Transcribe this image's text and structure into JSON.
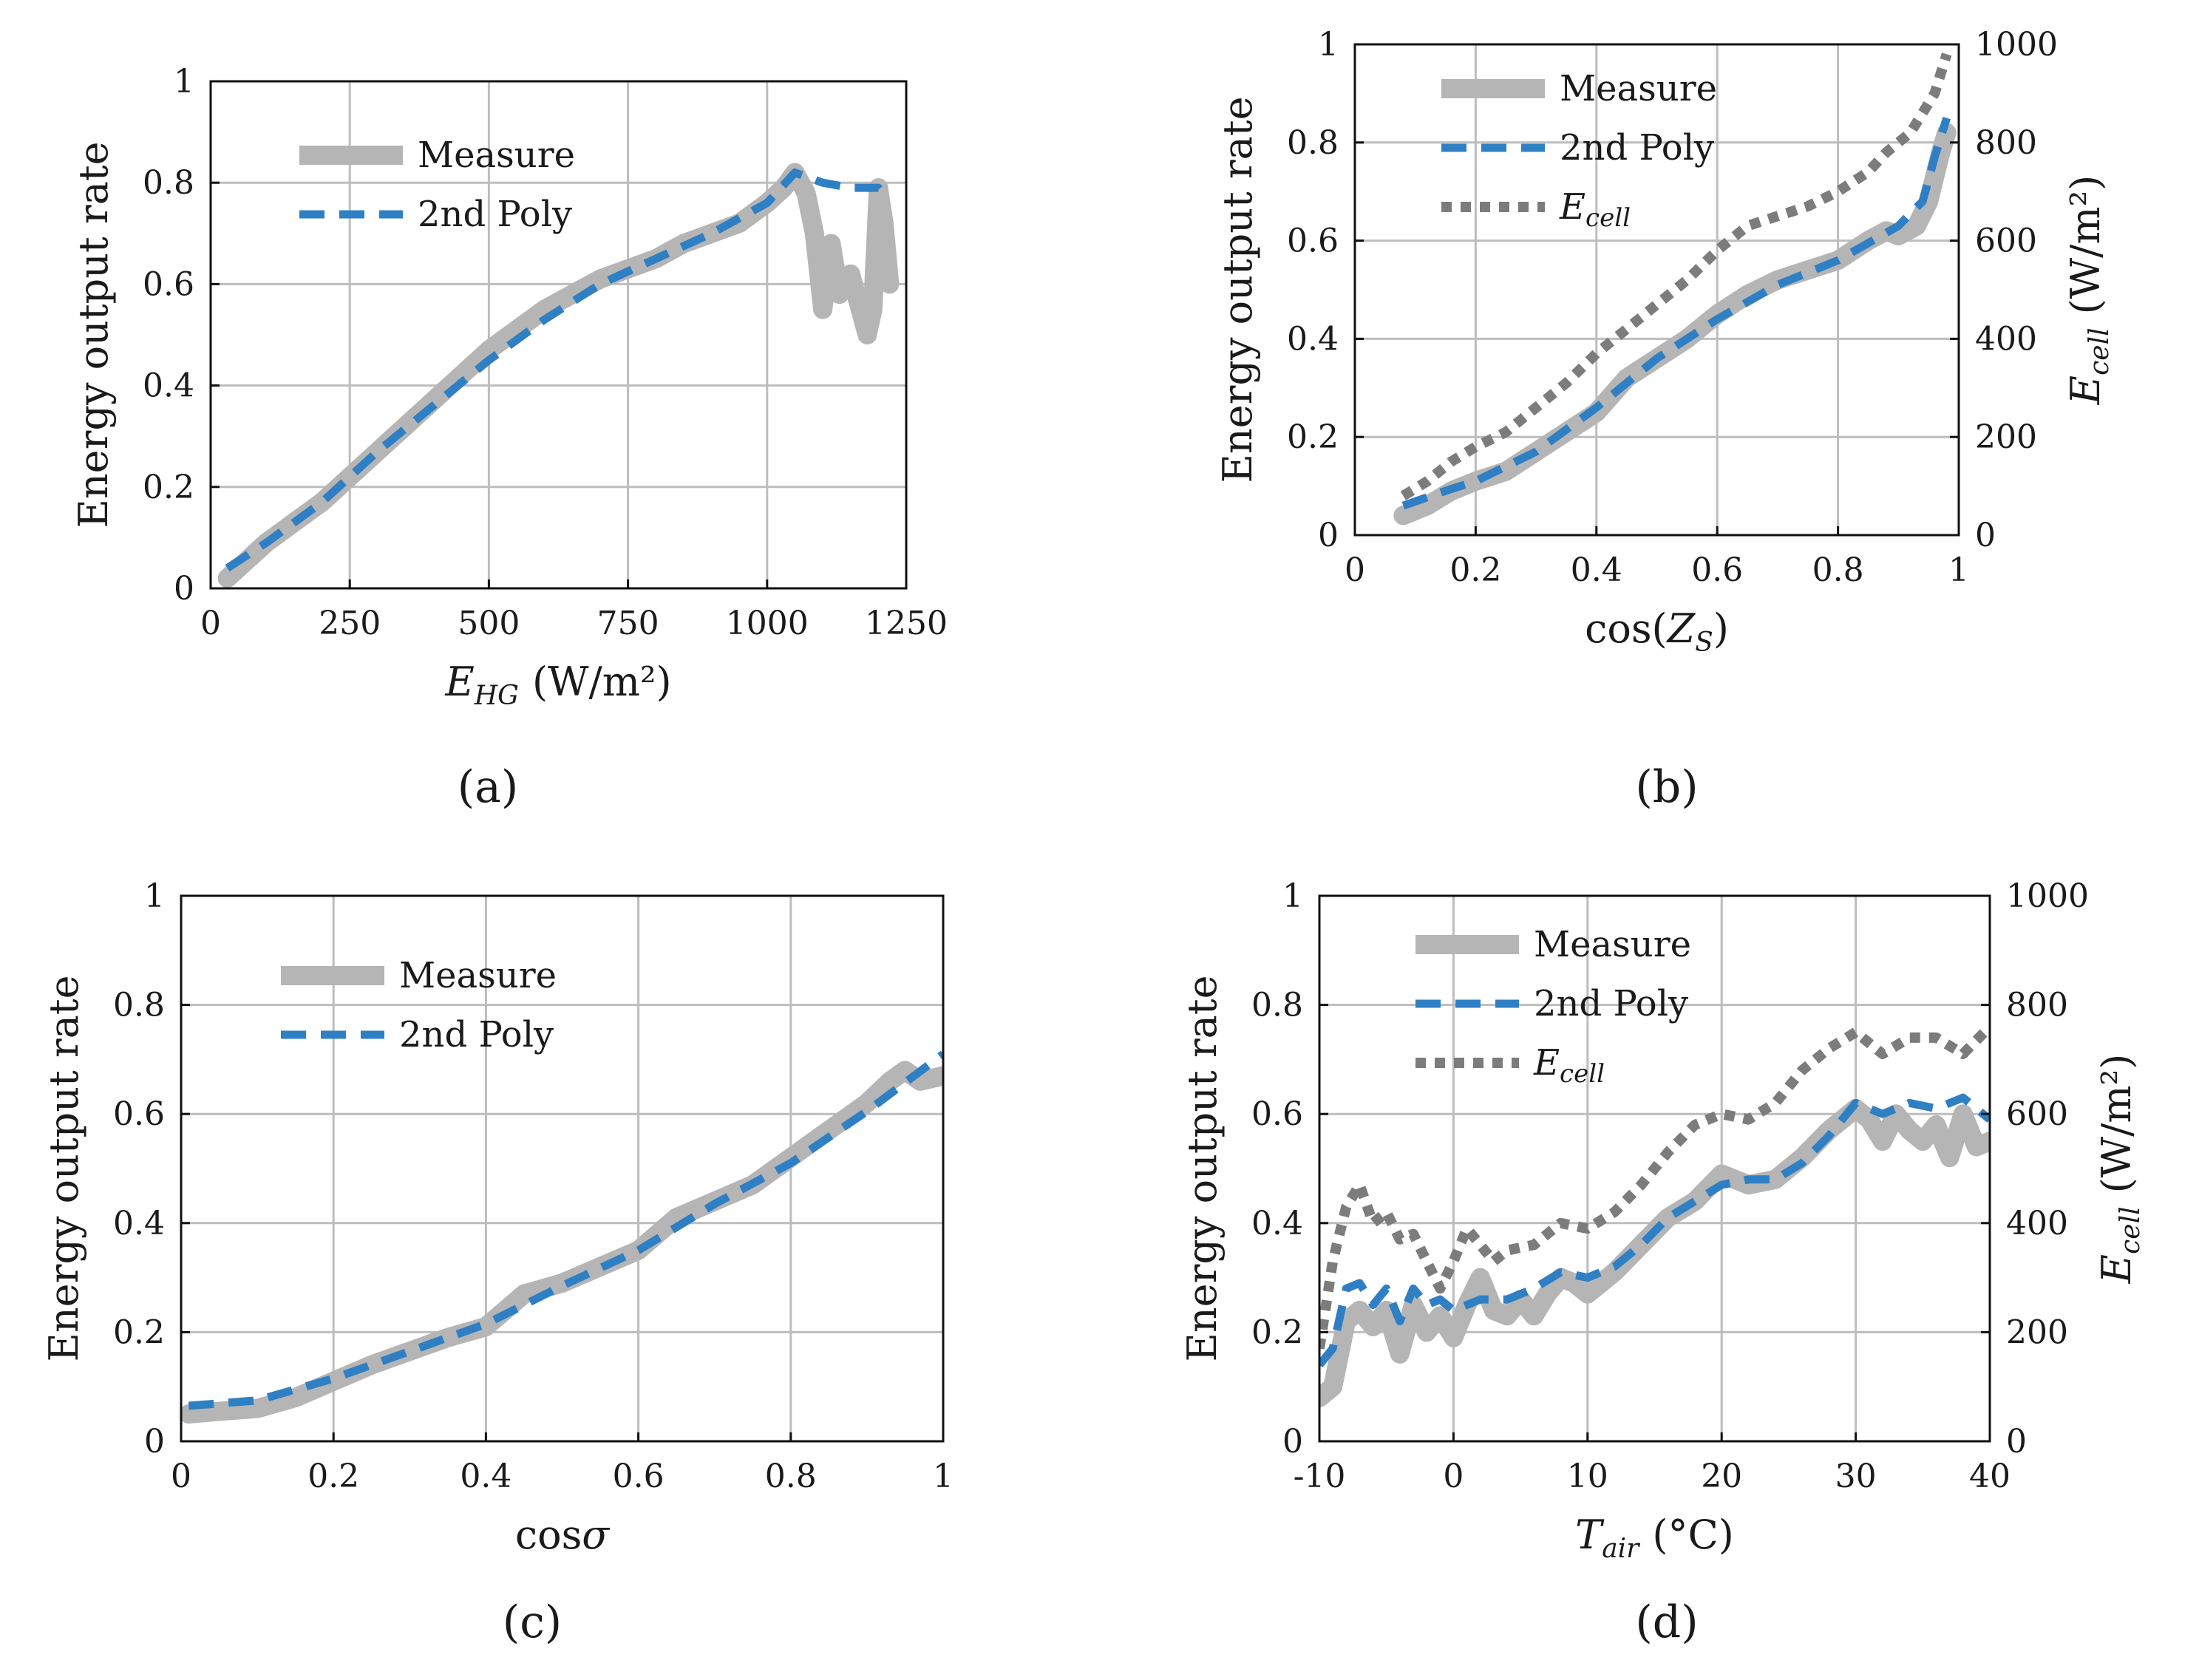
{
  "colors": {
    "measure": "#b5b5b5",
    "poly": "#2f7fc4",
    "ecell": "#7c7c7c",
    "grid": "#bdbdbd"
  },
  "chart_data": [
    {
      "type": "line",
      "caption": "(a)",
      "xlabel": {
        "main": "E",
        "sub": "HG",
        "unit": "(W/m²)"
      },
      "ylabel": "Energy output rate",
      "xlim": [
        0,
        1250
      ],
      "ylim": [
        0,
        1
      ],
      "xticks": [
        "0",
        "250",
        "500",
        "750",
        "1000",
        "1250"
      ],
      "yticks": [
        "0",
        "0.2",
        "0.4",
        "0.6",
        "0.8",
        "1"
      ],
      "legend": [
        "Measure",
        "2nd Poly"
      ],
      "series": [
        {
          "name": "Measure",
          "style": "measure",
          "x": [
            30,
            60,
            100,
            150,
            200,
            250,
            300,
            350,
            400,
            450,
            500,
            550,
            600,
            650,
            700,
            750,
            800,
            850,
            900,
            950,
            1000,
            1030,
            1050,
            1070,
            1085,
            1100,
            1115,
            1130,
            1150,
            1165,
            1180,
            1190,
            1200,
            1210,
            1220
          ],
          "y": [
            0.02,
            0.05,
            0.09,
            0.13,
            0.17,
            0.22,
            0.27,
            0.32,
            0.37,
            0.42,
            0.47,
            0.51,
            0.55,
            0.58,
            0.61,
            0.63,
            0.65,
            0.68,
            0.7,
            0.72,
            0.76,
            0.79,
            0.82,
            0.78,
            0.7,
            0.55,
            0.68,
            0.58,
            0.62,
            0.56,
            0.5,
            0.55,
            0.79,
            0.72,
            0.6
          ]
        },
        {
          "name": "2nd Poly",
          "style": "poly",
          "x": [
            30,
            100,
            200,
            300,
            400,
            500,
            600,
            700,
            800,
            900,
            1000,
            1050,
            1100,
            1150,
            1200,
            1215
          ],
          "y": [
            0.04,
            0.09,
            0.17,
            0.27,
            0.36,
            0.45,
            0.53,
            0.6,
            0.65,
            0.7,
            0.76,
            0.82,
            0.8,
            0.79,
            0.79,
            0.77
          ]
        }
      ]
    },
    {
      "type": "line",
      "caption": "(b)",
      "xlabel": {
        "pre": "cos(",
        "main": "Z",
        "sub": "S",
        "post": ")"
      },
      "ylabel": "Energy output rate",
      "ylabel2": {
        "main": "E",
        "sub": "cell",
        "unit": "(W/m²)"
      },
      "xlim": [
        0,
        1
      ],
      "ylim": [
        0,
        1
      ],
      "y2lim": [
        0,
        1000
      ],
      "xticks": [
        "0",
        "0.2",
        "0.4",
        "0.6",
        "0.8",
        "1"
      ],
      "yticks": [
        "0",
        "0.2",
        "0.4",
        "0.6",
        "0.8",
        "1"
      ],
      "y2ticks": [
        "0",
        "200",
        "400",
        "600",
        "800",
        "1000"
      ],
      "legend": [
        "Measure",
        "2nd Poly",
        "Ecell"
      ],
      "series": [
        {
          "name": "Measure",
          "style": "measure",
          "x": [
            0.08,
            0.12,
            0.16,
            0.2,
            0.25,
            0.3,
            0.35,
            0.4,
            0.45,
            0.5,
            0.55,
            0.6,
            0.65,
            0.7,
            0.75,
            0.8,
            0.85,
            0.88,
            0.9,
            0.93,
            0.95,
            0.97,
            0.98
          ],
          "y": [
            0.04,
            0.06,
            0.09,
            0.11,
            0.13,
            0.17,
            0.21,
            0.25,
            0.32,
            0.36,
            0.4,
            0.45,
            0.49,
            0.52,
            0.54,
            0.56,
            0.6,
            0.62,
            0.61,
            0.63,
            0.68,
            0.78,
            0.82
          ]
        },
        {
          "name": "2nd Poly",
          "style": "poly",
          "x": [
            0.08,
            0.15,
            0.2,
            0.3,
            0.4,
            0.5,
            0.6,
            0.7,
            0.8,
            0.9,
            0.94,
            0.96,
            0.98
          ],
          "y": [
            0.06,
            0.09,
            0.11,
            0.17,
            0.26,
            0.36,
            0.44,
            0.51,
            0.56,
            0.63,
            0.68,
            0.77,
            0.85
          ]
        },
        {
          "name": "Ecell",
          "style": "ecell",
          "axis": "y2",
          "x": [
            0.08,
            0.12,
            0.16,
            0.2,
            0.25,
            0.3,
            0.35,
            0.4,
            0.45,
            0.5,
            0.55,
            0.6,
            0.65,
            0.7,
            0.75,
            0.8,
            0.85,
            0.88,
            0.9,
            0.92,
            0.94,
            0.96,
            0.98
          ],
          "y": [
            80,
            110,
            150,
            180,
            210,
            260,
            310,
            370,
            420,
            470,
            520,
            580,
            630,
            650,
            670,
            700,
            740,
            780,
            800,
            820,
            860,
            900,
            980
          ]
        }
      ]
    },
    {
      "type": "line",
      "caption": "(c)",
      "xlabel": {
        "pre": "cos",
        "main": "σ"
      },
      "ylabel": "Energy output rate",
      "xlim": [
        0,
        1
      ],
      "ylim": [
        0,
        1
      ],
      "xticks": [
        "0",
        "0.2",
        "0.4",
        "0.6",
        "0.8",
        "1"
      ],
      "yticks": [
        "0",
        "0.2",
        "0.4",
        "0.6",
        "0.8",
        "1"
      ],
      "legend": [
        "Measure",
        "2nd Poly"
      ],
      "series": [
        {
          "name": "Measure",
          "style": "measure",
          "x": [
            0.01,
            0.05,
            0.1,
            0.15,
            0.2,
            0.25,
            0.3,
            0.35,
            0.4,
            0.45,
            0.5,
            0.55,
            0.6,
            0.65,
            0.7,
            0.75,
            0.8,
            0.85,
            0.9,
            0.93,
            0.95,
            0.97,
            1.0
          ],
          "y": [
            0.05,
            0.055,
            0.06,
            0.08,
            0.11,
            0.14,
            0.165,
            0.19,
            0.21,
            0.27,
            0.29,
            0.32,
            0.35,
            0.41,
            0.44,
            0.47,
            0.52,
            0.57,
            0.62,
            0.66,
            0.68,
            0.66,
            0.67
          ]
        },
        {
          "name": "2nd Poly",
          "style": "poly",
          "x": [
            0.01,
            0.1,
            0.2,
            0.3,
            0.4,
            0.5,
            0.6,
            0.7,
            0.8,
            0.9,
            1.0
          ],
          "y": [
            0.065,
            0.075,
            0.115,
            0.165,
            0.215,
            0.285,
            0.35,
            0.435,
            0.51,
            0.605,
            0.71
          ]
        }
      ]
    },
    {
      "type": "line",
      "caption": "(d)",
      "xlabel": {
        "main": "T",
        "sub": "air",
        "unit": "(°C)"
      },
      "ylabel": "Energy output rate",
      "ylabel2": {
        "main": "E",
        "sub": "cell",
        "unit": "(W/m²)"
      },
      "xlim": [
        -10,
        40
      ],
      "ylim": [
        0,
        1
      ],
      "y2lim": [
        0,
        1000
      ],
      "xticks": [
        "-10",
        "0",
        "10",
        "20",
        "30",
        "40"
      ],
      "yticks": [
        "0",
        "0.2",
        "0.4",
        "0.6",
        "0.8",
        "1"
      ],
      "y2ticks": [
        "0",
        "200",
        "400",
        "600",
        "800",
        "1000"
      ],
      "legend": [
        "Measure",
        "2nd Poly",
        "Ecell"
      ],
      "series": [
        {
          "name": "Measure",
          "style": "measure",
          "x": [
            -10,
            -9,
            -8,
            -7,
            -6,
            -5,
            -4,
            -3,
            -2,
            -1,
            0,
            1,
            2,
            3,
            4,
            5,
            6,
            7,
            8,
            9,
            10,
            11,
            12,
            14,
            16,
            18,
            20,
            22,
            24,
            26,
            28,
            30,
            31,
            32,
            33,
            34,
            35,
            36,
            37,
            38,
            39,
            40
          ],
          "y": [
            0.08,
            0.1,
            0.22,
            0.24,
            0.21,
            0.24,
            0.16,
            0.25,
            0.2,
            0.23,
            0.19,
            0.25,
            0.3,
            0.24,
            0.23,
            0.26,
            0.23,
            0.27,
            0.3,
            0.29,
            0.27,
            0.29,
            0.31,
            0.36,
            0.41,
            0.44,
            0.49,
            0.47,
            0.48,
            0.52,
            0.57,
            0.61,
            0.59,
            0.55,
            0.6,
            0.57,
            0.55,
            0.58,
            0.52,
            0.6,
            0.54,
            0.55
          ]
        },
        {
          "name": "2nd Poly",
          "style": "poly",
          "x": [
            -10,
            -9,
            -8,
            -7,
            -6,
            -5,
            -4,
            -3,
            -2,
            -1,
            0,
            2,
            4,
            6,
            8,
            10,
            12,
            14,
            16,
            18,
            20,
            22,
            24,
            26,
            28,
            30,
            32,
            34,
            36,
            38,
            40
          ],
          "y": [
            0.14,
            0.17,
            0.28,
            0.29,
            0.25,
            0.28,
            0.22,
            0.28,
            0.25,
            0.26,
            0.24,
            0.26,
            0.26,
            0.28,
            0.31,
            0.3,
            0.32,
            0.36,
            0.41,
            0.44,
            0.47,
            0.48,
            0.48,
            0.51,
            0.56,
            0.62,
            0.6,
            0.62,
            0.61,
            0.63,
            0.59
          ]
        },
        {
          "name": "Ecell",
          "style": "ecell",
          "axis": "y2",
          "x": [
            -10,
            -9,
            -8,
            -7,
            -6,
            -5,
            -4,
            -3,
            -2,
            -1,
            0,
            1,
            2,
            3,
            4,
            6,
            8,
            10,
            12,
            14,
            16,
            18,
            20,
            22,
            24,
            26,
            28,
            30,
            32,
            34,
            36,
            38,
            40
          ],
          "y": [
            170,
            330,
            430,
            470,
            400,
            420,
            370,
            380,
            330,
            280,
            330,
            390,
            360,
            330,
            350,
            360,
            400,
            390,
            420,
            470,
            530,
            580,
            600,
            590,
            620,
            680,
            720,
            750,
            710,
            740,
            740,
            710,
            760
          ]
        }
      ]
    }
  ]
}
